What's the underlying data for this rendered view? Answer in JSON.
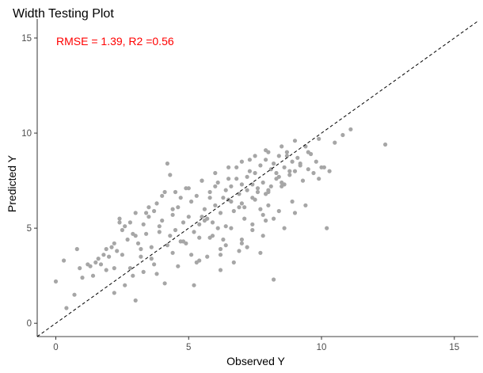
{
  "chart_data": {
    "type": "scatter",
    "title": "Width Testing Plot",
    "xlabel": "Observed Y",
    "ylabel": "Predicted Y",
    "xlim": [
      -0.7,
      15.9
    ],
    "ylim": [
      -0.7,
      16.0
    ],
    "x_ticks": [
      0,
      5,
      10,
      15
    ],
    "y_ticks": [
      0,
      5,
      10,
      15
    ],
    "grid": false,
    "annotation": {
      "text": "RMSE = 1.39, R2 =0.56",
      "color": "#ff0000"
    },
    "reference_line": {
      "type": "identity",
      "slope": 1,
      "intercept": 0,
      "style": "dashed",
      "color": "#000000"
    },
    "point_color": "#a6a6a6",
    "series": [
      {
        "x": [
          0.0,
          0.4,
          0.3,
          0.8,
          0.9,
          1.2,
          1.3,
          1.4,
          1.5,
          1.6,
          1.7,
          1.8,
          1.9,
          1.9,
          2.0,
          2.1,
          2.2,
          2.2,
          2.3,
          2.4,
          2.5,
          2.5,
          2.6,
          2.7,
          2.8,
          2.9,
          3.0,
          3.0,
          3.1,
          3.2,
          3.3,
          3.4,
          3.5,
          3.6,
          3.7,
          3.8,
          3.9,
          4.0,
          4.1,
          4.2,
          4.3,
          4.4,
          4.5,
          4.6,
          4.7,
          4.8,
          4.9,
          5.0,
          5.1,
          5.2,
          5.3,
          5.4,
          5.5,
          5.6,
          5.7,
          5.8,
          5.9,
          6.0,
          6.1,
          6.2,
          6.3,
          6.4,
          6.5,
          6.6,
          6.7,
          6.8,
          6.9,
          7.0,
          7.1,
          7.2,
          7.3,
          7.4,
          7.5,
          7.6,
          7.7,
          7.8,
          7.9,
          8.0,
          8.1,
          8.2,
          8.3,
          8.4,
          8.5,
          8.6,
          8.7,
          8.8,
          8.9,
          9.0,
          9.1,
          9.2,
          9.3,
          9.4,
          9.5,
          9.6,
          9.7,
          9.8,
          9.9,
          10.0,
          10.2,
          10.3,
          10.5,
          10.8,
          11.1,
          12.4,
          2.8,
          3.2,
          3.6,
          4.1,
          4.4,
          4.8,
          5.3,
          5.8,
          6.2,
          6.6,
          7.0,
          7.4,
          7.8,
          8.2,
          8.6,
          9.0,
          9.4,
          3.5,
          4.0,
          4.5,
          5.0,
          5.5,
          6.0,
          6.5,
          7.0,
          7.5,
          8.0,
          8.5,
          9.0,
          2.4,
          2.9,
          3.4,
          3.9,
          4.4,
          4.9,
          5.4,
          5.9,
          6.4,
          6.9,
          7.4,
          7.9,
          8.4,
          8.9,
          5.2,
          5.7,
          6.2,
          6.7,
          7.2,
          7.7,
          8.2,
          6.0,
          6.5,
          7.0,
          7.5,
          8.0,
          3.0,
          3.8,
          4.6,
          5.4,
          6.2,
          7.0,
          7.8,
          8.6,
          2.2,
          4.2,
          6.8,
          7.3,
          7.9,
          8.3,
          8.7,
          9.5,
          10.1,
          9.9,
          0.7,
          1.0,
          5.8,
          6.4,
          7.2,
          8.0,
          5.5,
          6.1,
          6.9,
          7.6,
          8.4,
          9.2,
          3.3,
          4.3,
          5.1,
          6.3,
          7.1,
          7.7,
          8.1,
          8.8,
          2.6,
          3.7,
          4.7,
          5.6,
          6.6,
          7.4,
          7.9,
          8.5
        ],
        "y": [
          2.2,
          0.8,
          3.3,
          3.9,
          2.9,
          3.1,
          3.0,
          2.5,
          3.2,
          3.4,
          3.1,
          3.6,
          2.8,
          3.9,
          3.5,
          4.0,
          2.9,
          4.2,
          3.8,
          5.5,
          4.9,
          3.6,
          5.1,
          4.4,
          5.3,
          2.5,
          4.6,
          5.8,
          4.2,
          3.9,
          5.2,
          4.7,
          5.6,
          3.4,
          5.9,
          6.3,
          4.8,
          5.4,
          6.9,
          4.1,
          7.8,
          5.7,
          4.9,
          6.1,
          6.6,
          5.3,
          7.1,
          5.6,
          6.4,
          4.8,
          6.7,
          5.2,
          7.5,
          6.0,
          5.5,
          6.9,
          4.6,
          6.2,
          7.4,
          5.8,
          6.6,
          7.0,
          6.5,
          7.2,
          5.9,
          7.6,
          6.8,
          7.3,
          6.1,
          7.7,
          8.0,
          6.6,
          7.9,
          7.1,
          8.3,
          7.4,
          8.6,
          7.0,
          8.1,
          8.4,
          7.6,
          8.8,
          7.2,
          8.2,
          9.0,
          7.8,
          8.5,
          8.0,
          8.7,
          8.3,
          7.5,
          9.3,
          8.1,
          8.9,
          7.9,
          8.5,
          9.7,
          8.2,
          5.0,
          8.0,
          9.5,
          9.9,
          10.2,
          9.4,
          2.9,
          3.5,
          4.0,
          2.1,
          3.7,
          4.3,
          3.2,
          4.5,
          3.9,
          5.0,
          4.4,
          5.2,
          4.6,
          5.5,
          5.0,
          5.8,
          6.2,
          6.1,
          6.7,
          6.9,
          7.1,
          7.5,
          7.9,
          8.2,
          8.5,
          8.8,
          9.0,
          9.3,
          9.6,
          5.3,
          4.7,
          5.8,
          5.1,
          6.0,
          4.2,
          4.5,
          5.3,
          4.1,
          3.8,
          4.9,
          5.4,
          5.9,
          6.4,
          2.0,
          3.5,
          2.8,
          3.2,
          4.0,
          3.7,
          2.3,
          7.2,
          7.6,
          6.3,
          6.5,
          6.9,
          1.2,
          2.6,
          3.0,
          3.3,
          3.6,
          4.2,
          5.7,
          7.3,
          1.6,
          8.4,
          8.2,
          8.6,
          9.1,
          7.9,
          8.8,
          9.0,
          8.2,
          7.6,
          1.5,
          2.4,
          6.6,
          5.1,
          7.0,
          6.2,
          5.6,
          5.0,
          6.1,
          6.9,
          7.7,
          8.4,
          2.7,
          4.6,
          3.6,
          4.4,
          5.5,
          6.0,
          7.2,
          8.0,
          2.0,
          3.1,
          4.3,
          5.4,
          6.4,
          7.3,
          6.8,
          7.4
        ]
      }
    ]
  }
}
